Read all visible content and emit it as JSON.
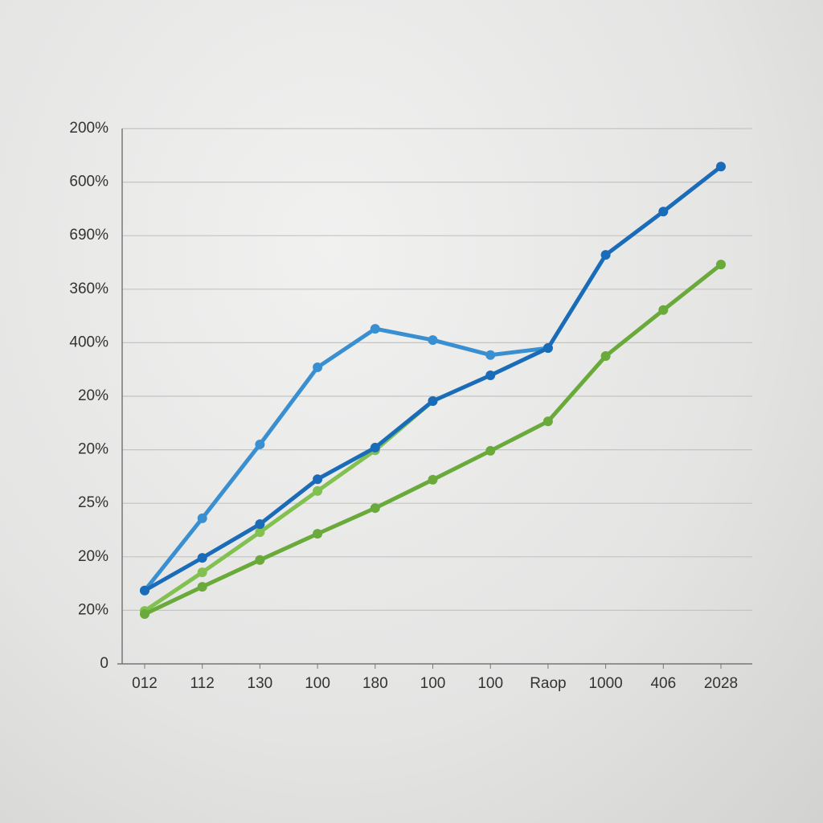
{
  "chart_data": {
    "type": "line",
    "categories": [
      "012",
      "112",
      "130",
      "100",
      "180",
      "100",
      "100",
      "Raop",
      "1000",
      "406",
      "2028"
    ],
    "series": [
      {
        "color": "#3a8fd0",
        "values": [
          1.37,
          2.72,
          4.1,
          5.54,
          6.26,
          6.05,
          5.77,
          5.9,
          null,
          null,
          null
        ]
      },
      {
        "color": "#82c050",
        "values": [
          0.99,
          1.71,
          2.46,
          3.23,
          3.99,
          4.91,
          null,
          null,
          null,
          null,
          null
        ]
      },
      {
        "color": "#6aaa3a",
        "values": [
          0.93,
          1.44,
          1.94,
          2.43,
          2.91,
          3.44,
          3.98,
          4.53,
          5.75,
          6.61,
          7.46
        ]
      },
      {
        "color": "#1a6cb8",
        "values": [
          1.37,
          1.98,
          2.61,
          3.45,
          4.04,
          4.91,
          5.39,
          5.9,
          7.64,
          8.45,
          9.29
        ]
      }
    ],
    "ylim": [
      0,
      10
    ],
    "yticks": [
      0,
      {
        "value": 1,
        "label": "20%"
      },
      {
        "value": 2,
        "label": "20%"
      },
      {
        "value": 3,
        "label": "25%"
      },
      {
        "value": 4,
        "label": "20%"
      },
      {
        "value": 5,
        "label": "20%"
      },
      {
        "value": 6,
        "label": "400%"
      },
      {
        "value": 7,
        "label": "360%"
      },
      {
        "value": 8,
        "label": "690%"
      },
      {
        "value": 9,
        "label": "600%"
      },
      {
        "value": 10,
        "label": "200%"
      }
    ],
    "grid": true
  }
}
